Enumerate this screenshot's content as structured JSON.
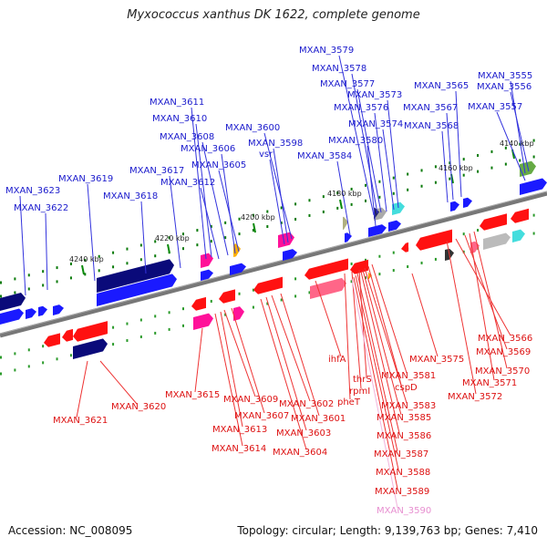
{
  "title": "Myxococcus xanthus DK 1622, complete genome",
  "footer": {
    "accession": "Accession: NC_008095",
    "stats": "Topology: circular; Length: 9,139,763 bp; Genes: 7,410"
  },
  "colors": {
    "forward_label": "#1a1acc",
    "reverse_label": "#dd1111",
    "dim_label": "#e78fd0",
    "forward_gene": "#1a1aff",
    "forward_gene_dark": "#0a0a7a",
    "reverse_gene": "#ff1111",
    "reverse_gene_dark": "#aa0a0a",
    "backbone": "#777777",
    "tick": "#0a8a0a"
  },
  "positions": [
    {
      "label": "4140 kbp"
    },
    {
      "label": "4160 kbp"
    },
    {
      "label": "4180 kbp"
    },
    {
      "label": "4200 kbp"
    },
    {
      "label": "4220 kbp"
    },
    {
      "label": "4240 kbp"
    }
  ],
  "forward_genes": [
    {
      "label": "MXAN_3555"
    },
    {
      "label": "MXAN_3556"
    },
    {
      "label": "MXAN_3557"
    },
    {
      "label": "MXAN_3565"
    },
    {
      "label": "MXAN_3567"
    },
    {
      "label": "MXAN_3568"
    },
    {
      "label": "MXAN_3573"
    },
    {
      "label": "MXAN_3574"
    },
    {
      "label": "MXAN_3576"
    },
    {
      "label": "MXAN_3577"
    },
    {
      "label": "MXAN_3578"
    },
    {
      "label": "MXAN_3579"
    },
    {
      "label": "MXAN_3580"
    },
    {
      "label": "MXAN_3584"
    },
    {
      "label": "vsr"
    },
    {
      "label": "MXAN_3598"
    },
    {
      "label": "MXAN_3600"
    },
    {
      "label": "MXAN_3605"
    },
    {
      "label": "MXAN_3606"
    },
    {
      "label": "MXAN_3608"
    },
    {
      "label": "MXAN_3610"
    },
    {
      "label": "MXAN_3611"
    },
    {
      "label": "MXAN_3612"
    },
    {
      "label": "MXAN_3617"
    },
    {
      "label": "MXAN_3618"
    },
    {
      "label": "MXAN_3619"
    },
    {
      "label": "MXAN_3622"
    },
    {
      "label": "MXAN_3623"
    }
  ],
  "reverse_genes": [
    {
      "label": "MXAN_3566"
    },
    {
      "label": "MXAN_3569"
    },
    {
      "label": "MXAN_3570"
    },
    {
      "label": "MXAN_3571"
    },
    {
      "label": "MXAN_3572"
    },
    {
      "label": "MXAN_3575"
    },
    {
      "label": "MXAN_3581"
    },
    {
      "label": "cspD"
    },
    {
      "label": "thrS"
    },
    {
      "label": "rpmI"
    },
    {
      "label": "ihfA"
    },
    {
      "label": "pheT"
    },
    {
      "label": "MXAN_3583"
    },
    {
      "label": "MXAN_3585"
    },
    {
      "label": "MXAN_3586"
    },
    {
      "label": "MXAN_3587"
    },
    {
      "label": "MXAN_3588"
    },
    {
      "label": "MXAN_3589"
    },
    {
      "label": "MXAN_3590"
    },
    {
      "label": "MXAN_3601"
    },
    {
      "label": "MXAN_3602"
    },
    {
      "label": "MXAN_3603"
    },
    {
      "label": "MXAN_3604"
    },
    {
      "label": "MXAN_3607"
    },
    {
      "label": "MXAN_3609"
    },
    {
      "label": "MXAN_3613"
    },
    {
      "label": "MXAN_3614"
    },
    {
      "label": "MXAN_3615"
    },
    {
      "label": "MXAN_3620"
    },
    {
      "label": "MXAN_3621"
    }
  ]
}
